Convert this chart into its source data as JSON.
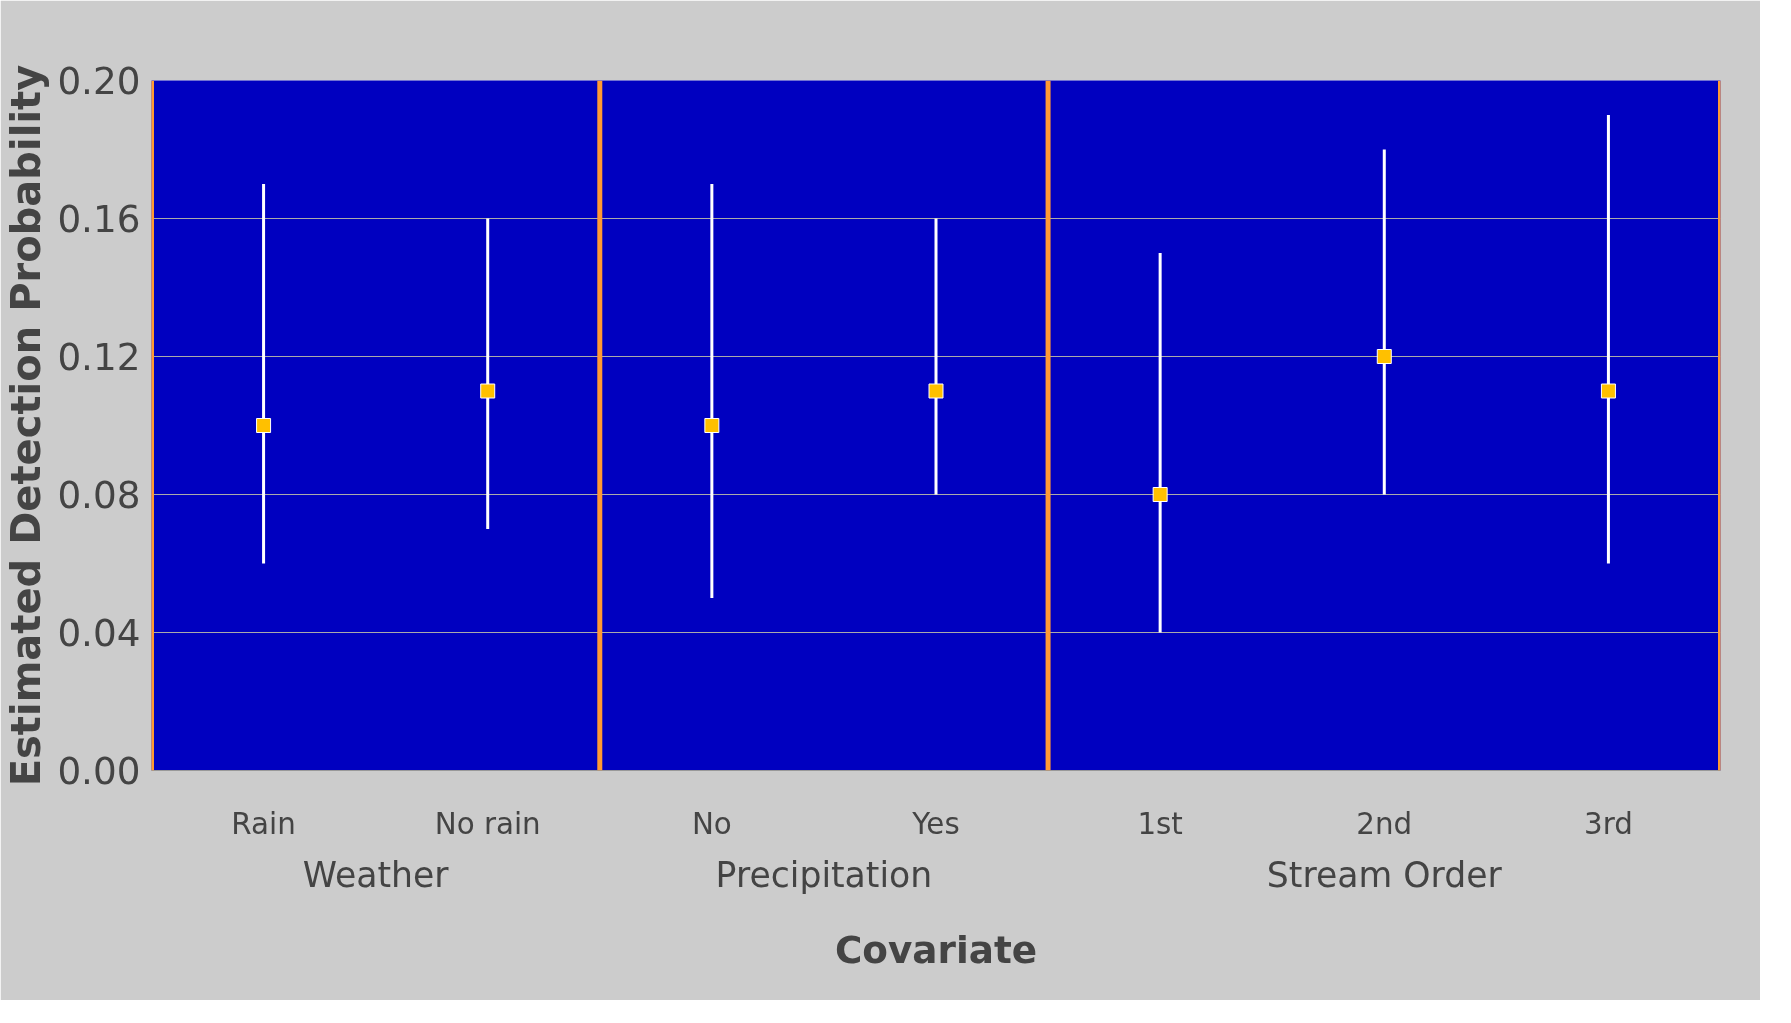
{
  "chart_data": {
    "type": "scatter",
    "xlabel": "Covariate",
    "ylabel": "Estimated Detection Probability",
    "categories": [
      "Rain",
      "No rain",
      "No",
      "Yes",
      "1st",
      "2nd",
      "3rd"
    ],
    "series": [
      {
        "color": "#ffc000",
        "values": [
          0.1,
          0.11,
          0.1,
          0.11,
          0.08,
          0.12,
          0.11
        ],
        "errors": [
          [
            0.06,
            0.17
          ],
          [
            0.07,
            0.16
          ],
          [
            0.05,
            0.17
          ],
          [
            0.08,
            0.16
          ],
          [
            0.04,
            0.15
          ],
          [
            0.08,
            0.18
          ],
          [
            0.06,
            0.19
          ]
        ]
      }
    ],
    "ylim": [
      0,
      0.2
    ],
    "yticks": [
      {
        "value": 0,
        "label": "0.00"
      },
      {
        "value": 0.04,
        "label": "0.04"
      },
      {
        "value": 0.08,
        "label": "0.08"
      },
      {
        "value": 0.12,
        "label": "0.12"
      },
      {
        "value": 0.16,
        "label": "0.16"
      },
      {
        "value": 0.2,
        "label": "0.20"
      }
    ],
    "grid": "y",
    "marker": "square",
    "annotations": [
      "Weather",
      "Precipitation",
      "Stream Order"
    ]
  }
}
